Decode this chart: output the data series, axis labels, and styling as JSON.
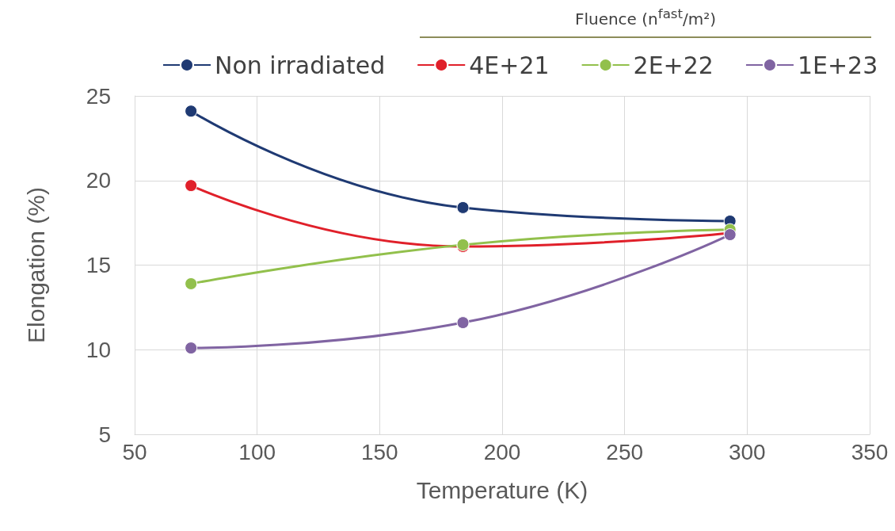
{
  "chart_data": {
    "type": "line",
    "xlabel": "Temperature (K)",
    "ylabel": "Elongation (%)",
    "legend_title": "Fluence (n$^{fast}$/m²)",
    "x": [
      73,
      184,
      293
    ],
    "series": [
      {
        "name": "Non irradiated",
        "color": "#1f3a73",
        "values": [
          24.1,
          18.4,
          17.6
        ]
      },
      {
        "name": "4E+21",
        "color": "#e0202a",
        "values": [
          19.7,
          16.1,
          16.9
        ]
      },
      {
        "name": "2E+22",
        "color": "#92c04c",
        "values": [
          13.9,
          16.2,
          17.1
        ]
      },
      {
        "name": "1E+23",
        "color": "#8064a2",
        "values": [
          10.1,
          11.6,
          16.8
        ]
      }
    ],
    "xlim": [
      50,
      350
    ],
    "xticks": [
      50,
      100,
      150,
      200,
      250,
      300,
      350
    ],
    "ylim": [
      5,
      25
    ],
    "yticks": [
      5,
      10,
      15,
      20,
      25
    ],
    "grid": true,
    "legend": "top",
    "marker": "circle",
    "line_style": "solid"
  }
}
